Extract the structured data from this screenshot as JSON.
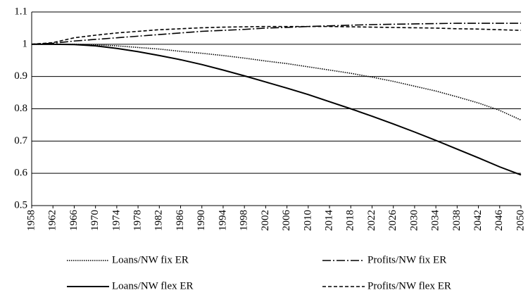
{
  "chart_data": {
    "type": "line",
    "x": [
      1958,
      1962,
      1966,
      1970,
      1974,
      1978,
      1982,
      1986,
      1990,
      1994,
      1998,
      2002,
      2006,
      2010,
      2014,
      2018,
      2022,
      2026,
      2030,
      2034,
      2038,
      2042,
      2046,
      2050
    ],
    "series": [
      {
        "name": "Loans/NW fix ER",
        "color": "#000000",
        "dash": "dotted",
        "values": [
          1,
          1,
          1,
          0.998,
          0.995,
          0.99,
          0.985,
          0.978,
          0.972,
          0.965,
          0.957,
          0.948,
          0.94,
          0.93,
          0.92,
          0.91,
          0.898,
          0.885,
          0.87,
          0.855,
          0.837,
          0.818,
          0.795,
          0.765
        ]
      },
      {
        "name": "Profits/NW fix ER",
        "color": "#000000",
        "dash": "dashdot",
        "values": [
          1,
          1.003,
          1.01,
          1.015,
          1.02,
          1.025,
          1.03,
          1.035,
          1.04,
          1.043,
          1.046,
          1.05,
          1.052,
          1.055,
          1.057,
          1.059,
          1.061,
          1.062,
          1.063,
          1.064,
          1.065,
          1.065,
          1.065,
          1.065
        ]
      },
      {
        "name": "Loans/NW flex ER",
        "color": "#000000",
        "dash": "solid",
        "values": [
          1,
          1,
          0.999,
          0.995,
          0.987,
          0.977,
          0.965,
          0.952,
          0.937,
          0.92,
          0.902,
          0.883,
          0.864,
          0.844,
          0.822,
          0.8,
          0.777,
          0.753,
          0.728,
          0.702,
          0.675,
          0.648,
          0.62,
          0.595
        ]
      },
      {
        "name": "Profits/NW flex ER",
        "color": "#000000",
        "dash": "dashed",
        "values": [
          1,
          1.005,
          1.02,
          1.028,
          1.035,
          1.04,
          1.045,
          1.048,
          1.051,
          1.053,
          1.054,
          1.055,
          1.055,
          1.055,
          1.055,
          1.054,
          1.053,
          1.052,
          1.051,
          1.05,
          1.048,
          1.047,
          1.045,
          1.043
        ]
      }
    ],
    "xlim": [
      1958,
      2050
    ],
    "xticks": [
      1958,
      1962,
      1966,
      1970,
      1974,
      1978,
      1982,
      1986,
      1990,
      1994,
      1998,
      2002,
      2006,
      2010,
      2014,
      2018,
      2022,
      2026,
      2030,
      2034,
      2038,
      2042,
      2046,
      2050
    ],
    "ylim": [
      0.5,
      1.1
    ],
    "yticks": [
      0.5,
      0.6,
      0.7,
      0.8,
      0.9,
      1,
      1.1
    ],
    "grid": true,
    "legend": "bottom"
  }
}
